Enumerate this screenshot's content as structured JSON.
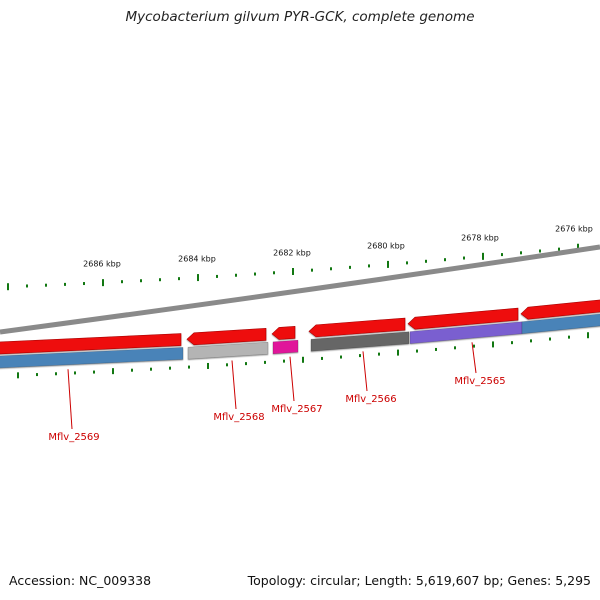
{
  "title": "Mycobacterium gilvum PYR-GCK, complete genome",
  "footer": {
    "accession": "Accession: NC_009338",
    "summary": "Topology: circular; Length: 5,619,607 bp; Genes: 5,295"
  },
  "colors": {
    "backbone": "#8a8a8a",
    "orf": "#ee1111",
    "tick": "#117711",
    "label": "#cc0000"
  },
  "kbp_labels": [
    "2686 kbp",
    "2684 kbp",
    "2682 kbp",
    "2680 kbp",
    "2678 kbp",
    "2676 kbp"
  ],
  "genes": [
    {
      "name": "Mflv_2569",
      "color": "#4a83b8"
    },
    {
      "name": "Mflv_2568",
      "color": "#b4b4b4"
    },
    {
      "name": "Mflv_2567",
      "color": "#e0189a"
    },
    {
      "name": "Mflv_2566",
      "color": "#666666"
    },
    {
      "name": "Mflv_2565",
      "color": "#7a5fd0"
    }
  ]
}
